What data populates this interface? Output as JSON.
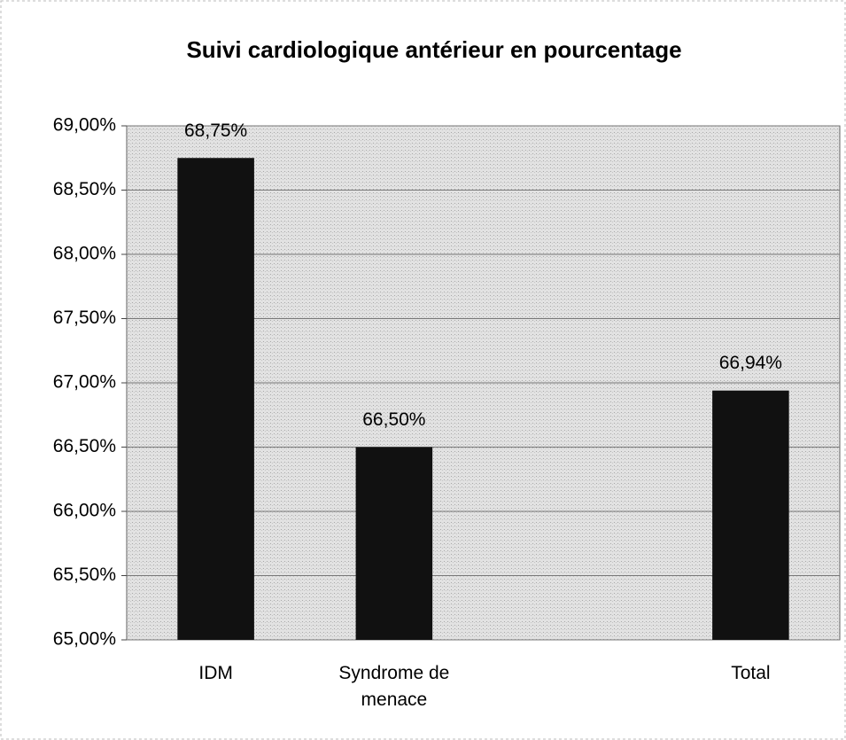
{
  "chart_data": {
    "type": "bar",
    "title": "Suivi cardiologique antérieur en pourcentage",
    "categories": [
      "IDM",
      "Syndrome de menace",
      null,
      "Total"
    ],
    "values": [
      68.75,
      66.5,
      null,
      66.94
    ],
    "value_labels": [
      "68,75%",
      "66,50%",
      null,
      "66,94%"
    ],
    "color": "#111111",
    "ylim": [
      65,
      69
    ],
    "yticks": [
      {
        "value": 65,
        "label": "65,00%"
      },
      {
        "value": 65.5,
        "label": "65,50%"
      },
      {
        "value": 66,
        "label": "66,00%"
      },
      {
        "value": 66.5,
        "label": "66,50%"
      },
      {
        "value": 67,
        "label": "67,00%"
      },
      {
        "value": 67.5,
        "label": "67,50%"
      },
      {
        "value": 68,
        "label": "68,00%"
      },
      {
        "value": 68.5,
        "label": "68,50%"
      },
      {
        "value": 69,
        "label": "69,00%"
      }
    ],
    "grid": true
  }
}
